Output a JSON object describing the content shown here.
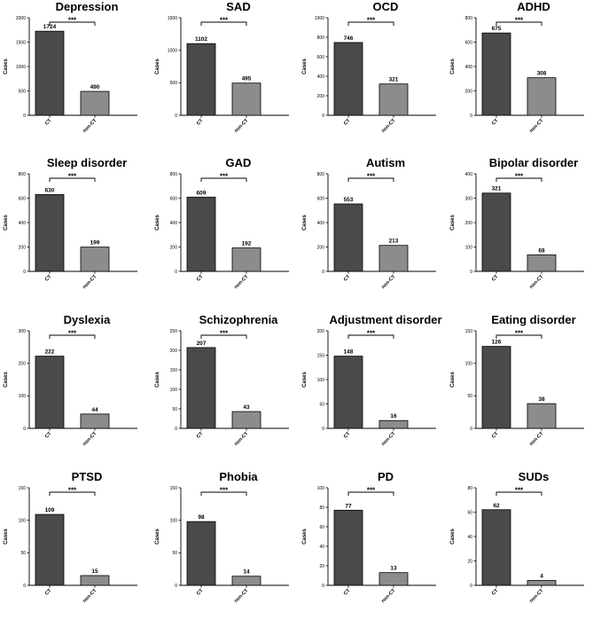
{
  "figure": {
    "significance_label": "***",
    "colors": {
      "ct": "#4a4a4a",
      "non_ct": "#8c8c8c",
      "edge": "#000000"
    }
  },
  "chart_data": [
    {
      "type": "bar",
      "title": "Depression",
      "ylabel": "Cases",
      "categories": [
        "CT",
        "non-CT"
      ],
      "values": [
        1724,
        490
      ],
      "ylim": [
        0,
        2000
      ],
      "yticks": [
        0,
        500,
        1000,
        1500,
        2000
      ]
    },
    {
      "type": "bar",
      "title": "SAD",
      "ylabel": "Cases",
      "categories": [
        "CT",
        "non-CT"
      ],
      "values": [
        1102,
        495
      ],
      "ylim": [
        0,
        1500
      ],
      "yticks": [
        0,
        500,
        1000,
        1500
      ]
    },
    {
      "type": "bar",
      "title": "OCD",
      "ylabel": "Cases",
      "categories": [
        "CT",
        "non-CT"
      ],
      "values": [
        746,
        321
      ],
      "ylim": [
        0,
        1000
      ],
      "yticks": [
        0,
        200,
        400,
        600,
        800,
        1000
      ]
    },
    {
      "type": "bar",
      "title": "ADHD",
      "ylabel": "Cases",
      "categories": [
        "CT",
        "non-CT"
      ],
      "values": [
        675,
        308
      ],
      "ylim": [
        0,
        800
      ],
      "yticks": [
        0,
        200,
        400,
        600,
        800
      ]
    },
    {
      "type": "bar",
      "title": "Sleep disorder",
      "ylabel": "Cases",
      "categories": [
        "CT",
        "non-CT"
      ],
      "values": [
        630,
        199
      ],
      "ylim": [
        0,
        800
      ],
      "yticks": [
        0,
        200,
        400,
        600,
        800
      ]
    },
    {
      "type": "bar",
      "title": "GAD",
      "ylabel": "Cases",
      "categories": [
        "CT",
        "non-CT"
      ],
      "values": [
        609,
        192
      ],
      "ylim": [
        0,
        800
      ],
      "yticks": [
        0,
        200,
        400,
        600,
        800
      ]
    },
    {
      "type": "bar",
      "title": "Autism",
      "ylabel": "Cases",
      "categories": [
        "CT",
        "non-CT"
      ],
      "values": [
        553,
        213
      ],
      "ylim": [
        0,
        800
      ],
      "yticks": [
        0,
        200,
        400,
        600,
        800
      ]
    },
    {
      "type": "bar",
      "title": "Bipolar disorder",
      "ylabel": "Cases",
      "categories": [
        "CT",
        "non-CT"
      ],
      "values": [
        321,
        68
      ],
      "ylim": [
        0,
        400
      ],
      "yticks": [
        0,
        100,
        200,
        300,
        400
      ]
    },
    {
      "type": "bar",
      "title": "Dyslexia",
      "ylabel": "Cases",
      "categories": [
        "CT",
        "non-CT"
      ],
      "values": [
        222,
        44
      ],
      "ylim": [
        0,
        300
      ],
      "yticks": [
        0,
        100,
        200,
        300
      ]
    },
    {
      "type": "bar",
      "title": "Schizophrenia",
      "ylabel": "Cases",
      "categories": [
        "CT",
        "non-CT"
      ],
      "values": [
        207,
        43
      ],
      "ylim": [
        0,
        250
      ],
      "yticks": [
        0,
        50,
        100,
        150,
        200,
        250
      ]
    },
    {
      "type": "bar",
      "title": "Adjustment disorder",
      "ylabel": "Cases",
      "categories": [
        "CT",
        "non-CT"
      ],
      "values": [
        148,
        16
      ],
      "ylim": [
        0,
        200
      ],
      "yticks": [
        0,
        50,
        100,
        150,
        200
      ]
    },
    {
      "type": "bar",
      "title": "Eating disorder",
      "ylabel": "Cases",
      "categories": [
        "CT",
        "non-CT"
      ],
      "values": [
        126,
        38
      ],
      "ylim": [
        0,
        150
      ],
      "yticks": [
        0,
        50,
        100,
        150
      ]
    },
    {
      "type": "bar",
      "title": "PTSD",
      "ylabel": "Cases",
      "categories": [
        "CT",
        "non-CT"
      ],
      "values": [
        109,
        15
      ],
      "ylim": [
        0,
        150
      ],
      "yticks": [
        0,
        50,
        100,
        150
      ]
    },
    {
      "type": "bar",
      "title": "Phobia",
      "ylabel": "Cases",
      "categories": [
        "CT",
        "non-CT"
      ],
      "values": [
        98,
        14
      ],
      "ylim": [
        0,
        150
      ],
      "yticks": [
        0,
        50,
        100,
        150
      ]
    },
    {
      "type": "bar",
      "title": "PD",
      "ylabel": "Cases",
      "categories": [
        "CT",
        "non-CT"
      ],
      "values": [
        77,
        13
      ],
      "ylim": [
        0,
        100
      ],
      "yticks": [
        0,
        20,
        40,
        60,
        80,
        100
      ]
    },
    {
      "type": "bar",
      "title": "SUDs",
      "ylabel": "Cases",
      "categories": [
        "CT",
        "non-CT"
      ],
      "values": [
        62,
        4
      ],
      "ylim": [
        0,
        80
      ],
      "yticks": [
        0,
        20,
        40,
        60,
        80
      ]
    }
  ]
}
